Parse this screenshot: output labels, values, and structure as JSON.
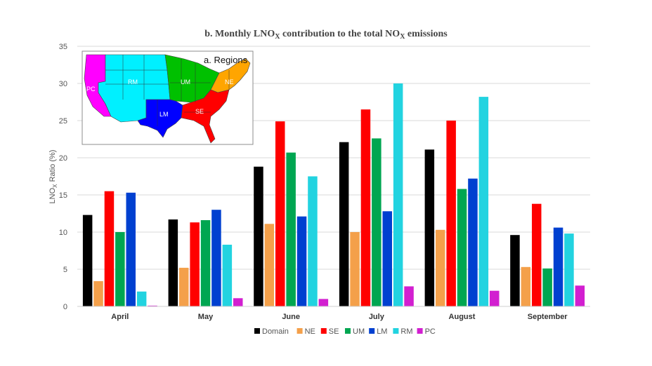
{
  "chart_data": {
    "type": "bar",
    "title": "b. Monthly LNO",
    "title_sub": "X",
    "title_mid": " contribution to the total NO",
    "title_sub2": "X",
    "title_end": " emissions",
    "ylabel": "LNO",
    "ylabel_sub": "X",
    "ylabel_end": " Ratio (%)",
    "xlabel": "",
    "ylim": [
      0,
      35
    ],
    "yticks": [
      "0",
      "5",
      "10",
      "15",
      "20",
      "25",
      "30",
      "35"
    ],
    "grid": true,
    "legend_position": "bottom",
    "categories": [
      "April",
      "May",
      "June",
      "July",
      "August",
      "September"
    ],
    "series": [
      {
        "name": "Domain",
        "color": "#000000",
        "values": [
          12.3,
          11.7,
          18.8,
          22.1,
          21.1,
          9.6
        ]
      },
      {
        "name": "NE",
        "color": "#F4A04A",
        "values": [
          3.4,
          5.2,
          11.1,
          10.0,
          10.3,
          5.3
        ]
      },
      {
        "name": "SE",
        "color": "#FF0000",
        "values": [
          15.5,
          11.3,
          24.9,
          26.5,
          25.0,
          13.8
        ]
      },
      {
        "name": "UM",
        "color": "#00A651",
        "values": [
          10.0,
          11.6,
          20.7,
          22.6,
          15.8,
          5.1
        ]
      },
      {
        "name": "LM",
        "color": "#0040D0",
        "values": [
          15.3,
          13.0,
          12.1,
          12.8,
          17.2,
          10.6
        ]
      },
      {
        "name": "RM",
        "color": "#22D3E0",
        "values": [
          2.0,
          8.3,
          17.5,
          30.0,
          28.2,
          9.8
        ]
      },
      {
        "name": "PC",
        "color": "#D21FD0",
        "values": [
          0.1,
          1.1,
          1.0,
          2.7,
          2.1,
          2.8
        ]
      }
    ]
  },
  "inset": {
    "title": "a. Regions",
    "labels": [
      "PC",
      "RM",
      "UM",
      "NE",
      "SE",
      "LM"
    ]
  }
}
